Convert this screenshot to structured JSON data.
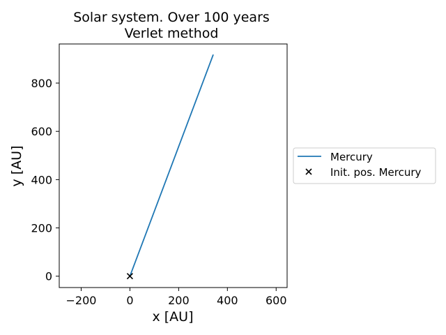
{
  "chart_data": {
    "type": "line",
    "title": [
      "Solar system. Over 100 years",
      "Verlet method"
    ],
    "xlabel": "x [AU]",
    "ylabel": "y [AU]",
    "xlim": [
      -290,
      645
    ],
    "ylim": [
      -47,
      962
    ],
    "xticks": [
      -200,
      0,
      200,
      400,
      600
    ],
    "xtick_labels": [
      "−200",
      "0",
      "200",
      "400",
      "600"
    ],
    "yticks": [
      0,
      200,
      400,
      600,
      800
    ],
    "ytick_labels": [
      "0",
      "200",
      "400",
      "600",
      "800"
    ],
    "grid": false,
    "legend_placement": "center-right, outside plot",
    "series": [
      {
        "name": "Mercury",
        "kind": "line",
        "color": "#1f77b4",
        "x": [
          0,
          342
        ],
        "y": [
          0,
          918
        ]
      },
      {
        "name": "Init. pos. Mercury",
        "kind": "marker",
        "marker": "x",
        "color": "#000000",
        "x": [
          0
        ],
        "y": [
          0
        ]
      }
    ]
  }
}
